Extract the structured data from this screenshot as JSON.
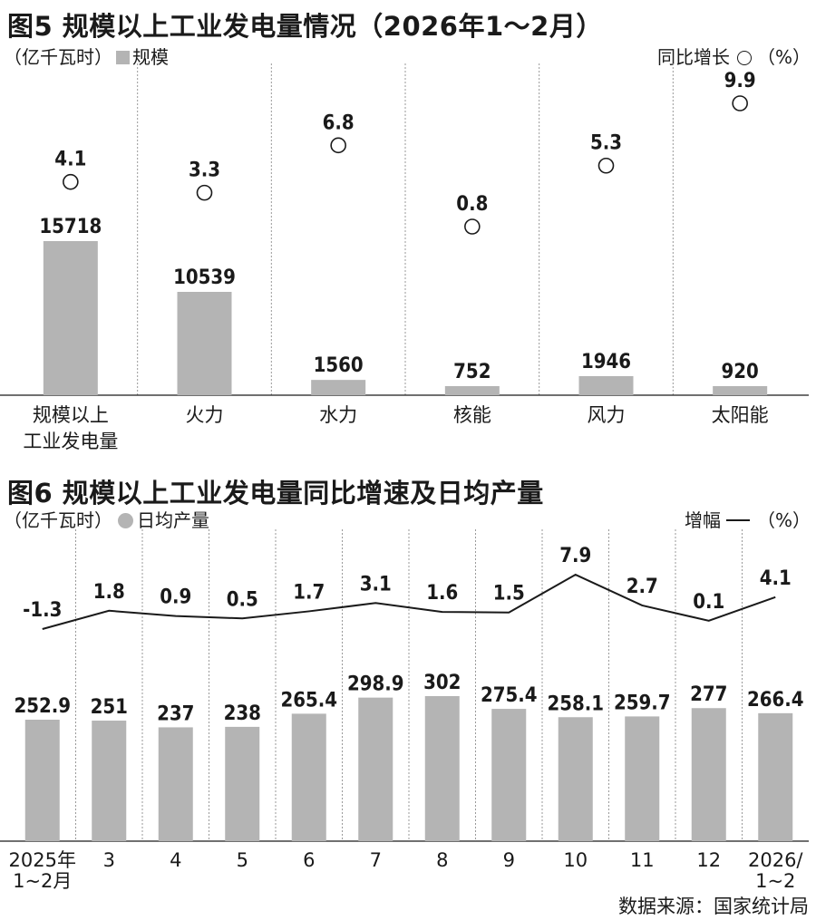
{
  "chart_data": [
    {
      "type": "bar",
      "title": "图5 规模以上工业发电量情况（2026年1～2月）",
      "ylabel": "（亿千瓦时）",
      "legend": {
        "bar": "规模",
        "marker": "同比增长",
        "unit": "（%）"
      },
      "categories": [
        "规模以上工业发电量",
        "火力",
        "水力",
        "核能",
        "风力",
        "太阳能"
      ],
      "category_lines": [
        [
          "规模以上",
          "工业发电量"
        ],
        [
          "火力"
        ],
        [
          "水力"
        ],
        [
          "核能"
        ],
        [
          "风力"
        ],
        [
          "太阳能"
        ]
      ],
      "series": [
        {
          "name": "规模",
          "kind": "bar",
          "values": [
            15718,
            10539,
            1560,
            752,
            1946,
            920
          ]
        },
        {
          "name": "同比增长",
          "kind": "marker",
          "values": [
            4.1,
            3.3,
            6.8,
            0.8,
            5.3,
            9.9
          ]
        }
      ],
      "bar_label_text": [
        "15718",
        "10539",
        "1560",
        "752",
        "1946",
        "920"
      ],
      "marker_label_text": [
        "4.1",
        "3.3",
        "6.8",
        "0.8",
        "5.3",
        "9.9"
      ],
      "grid": false
    },
    {
      "type": "bar",
      "title": "图6 规模以上工业发电量同比增速及日均产量",
      "ylabel": "（亿千瓦时）",
      "legend": {
        "bar": "日均产量",
        "line": "增幅",
        "unit": "（%）"
      },
      "categories": [
        "2025年 1~2月",
        "3",
        "4",
        "5",
        "6",
        "7",
        "8",
        "9",
        "10",
        "11",
        "12",
        "2026/ 1~2"
      ],
      "category_lines": [
        [
          "2025年",
          "1~2月"
        ],
        [
          "3"
        ],
        [
          "4"
        ],
        [
          "5"
        ],
        [
          "6"
        ],
        [
          "7"
        ],
        [
          "8"
        ],
        [
          "9"
        ],
        [
          "10"
        ],
        [
          "11"
        ],
        [
          "12"
        ],
        [
          "2026/",
          "1~2"
        ]
      ],
      "series": [
        {
          "name": "日均产量",
          "kind": "bar",
          "values": [
            252.9,
            251,
            237,
            238,
            265.4,
            298.9,
            302,
            275.4,
            258.1,
            259.7,
            277,
            266.4
          ]
        },
        {
          "name": "增幅",
          "kind": "line",
          "values": [
            -1.3,
            1.8,
            0.9,
            0.5,
            1.7,
            3.1,
            1.6,
            1.5,
            7.9,
            2.7,
            0.1,
            4.1
          ]
        }
      ],
      "bar_label_text": [
        "252.9",
        "251",
        "237",
        "238",
        "265.4",
        "298.9",
        "302",
        "275.4",
        "258.1",
        "259.7",
        "277",
        "266.4"
      ],
      "line_label_text": [
        "-1.3",
        "1.8",
        "0.9",
        "0.5",
        "1.7",
        "3.1",
        "1.6",
        "1.5",
        "7.9",
        "2.7",
        "0.1",
        "4.1"
      ],
      "grid": false
    }
  ],
  "source": "数据来源：国家统计局",
  "colors": {
    "bar": "#b4b4b4",
    "ink": "#1a1a1a",
    "divider": "#9a9a9a"
  }
}
